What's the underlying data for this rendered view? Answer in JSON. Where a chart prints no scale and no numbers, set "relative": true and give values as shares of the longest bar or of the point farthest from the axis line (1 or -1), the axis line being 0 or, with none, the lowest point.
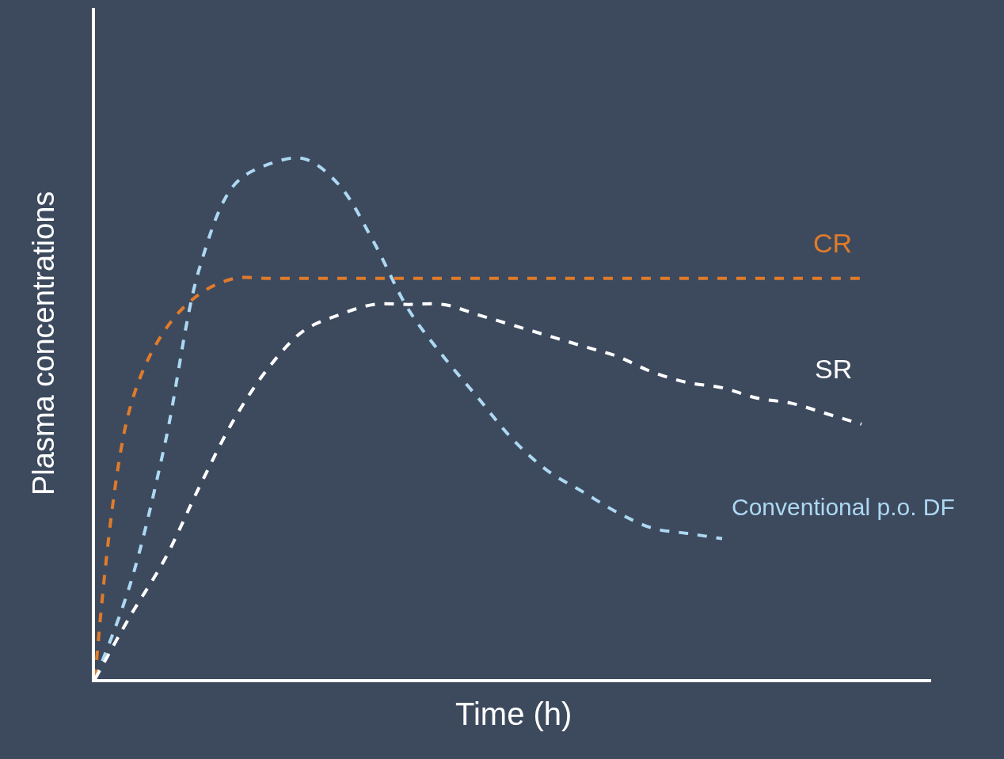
{
  "chart_data": {
    "type": "line",
    "relative": true,
    "xlabel": "Time (h)",
    "ylabel": "Plasma concentrations",
    "categories": [
      null,
      null,
      null,
      null,
      null,
      null,
      null,
      null,
      null,
      null,
      null,
      null,
      null,
      null,
      null,
      null,
      null,
      null,
      null,
      null,
      null,
      null,
      null,
      null,
      null
    ],
    "series": [
      {
        "name": "Conventional p.o. DF",
        "color": "#add8f2",
        "values": [
          0,
          0.18,
          0.45,
          0.79,
          0.95,
          0.99,
          1,
          0.95,
          0.84,
          0.71,
          0.62,
          0.54,
          0.46,
          0.4,
          0.36,
          0.32,
          0.29,
          0.28,
          0.27,
          null,
          null,
          null,
          null,
          null,
          null
        ]
      },
      {
        "name": "CR",
        "color": "#e07b2a",
        "values": [
          0,
          0.52,
          0.67,
          0.74,
          0.77,
          0.77,
          0.77,
          0.77,
          0.77,
          0.77,
          0.77,
          0.77,
          0.77,
          0.77,
          0.77,
          0.77,
          0.77,
          0.77,
          0.77,
          0.77,
          0.77,
          0.77,
          0.77,
          null,
          null
        ]
      },
      {
        "name": "SR",
        "color": "#ffffff",
        "values": [
          0,
          0.12,
          0.23,
          0.37,
          0.5,
          0.6,
          0.67,
          0.7,
          0.72,
          0.72,
          0.72,
          0.7,
          0.68,
          0.66,
          0.64,
          0.62,
          0.59,
          0.57,
          0.56,
          0.54,
          0.53,
          0.51,
          0.49,
          null,
          null
        ]
      }
    ],
    "line_style": "dashed",
    "marker": "none",
    "grid": false,
    "legend": false
  }
}
